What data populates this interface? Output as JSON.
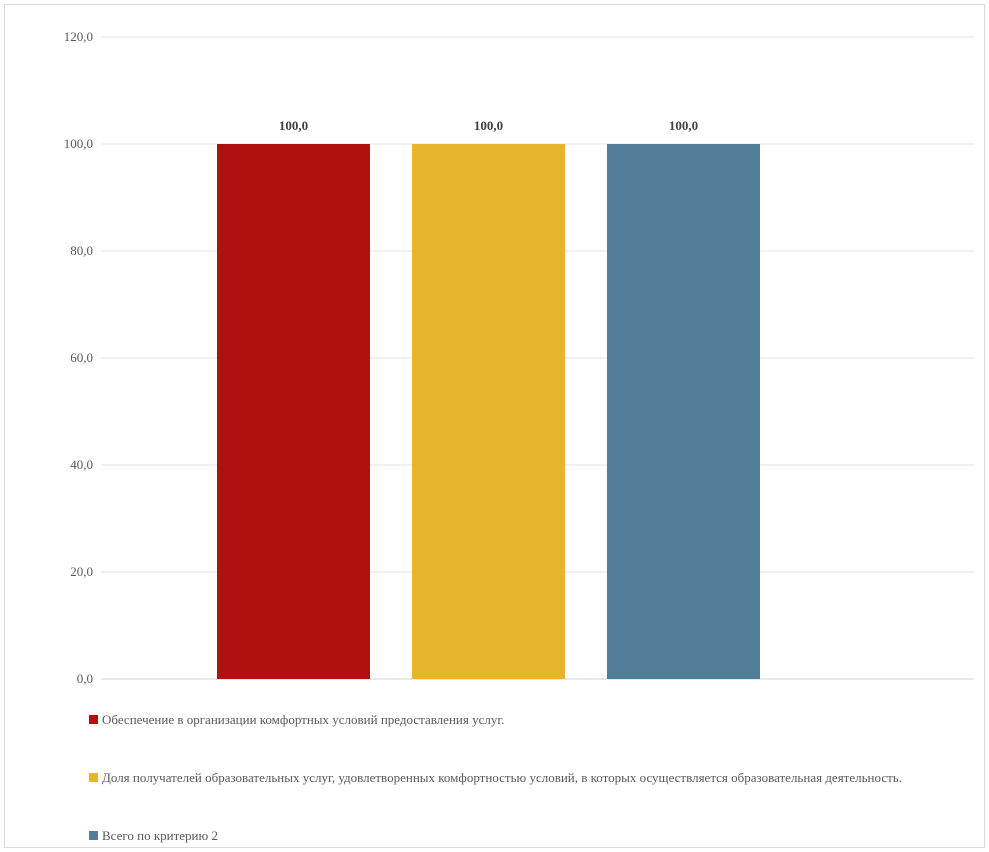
{
  "chart_data": {
    "type": "bar",
    "categories": [
      ""
    ],
    "series": [
      {
        "name": "Обеспечение в организации комфортных условий предоставления услуг.",
        "values": [
          100.0
        ],
        "color": "#b01010"
      },
      {
        "name": "Доля получателей образовательных услуг, удовлетворенных комфортностью условий, в которых осуществляется образовательная деятельность.",
        "values": [
          100.0
        ],
        "color": "#e6b52b"
      },
      {
        "name": "Всего по критерию 2",
        "values": [
          100.0
        ],
        "color": "#527d96"
      }
    ],
    "data_labels": [
      "100,0",
      "100,0",
      "100,0"
    ],
    "y_ticks": [
      "0,0",
      "20,0",
      "40,0",
      "60,0",
      "80,0",
      "100,0",
      "120,0"
    ],
    "ylim": [
      0,
      120
    ],
    "title": "",
    "xlabel": "",
    "ylabel": "",
    "grid": true,
    "legend_position": "bottom"
  }
}
